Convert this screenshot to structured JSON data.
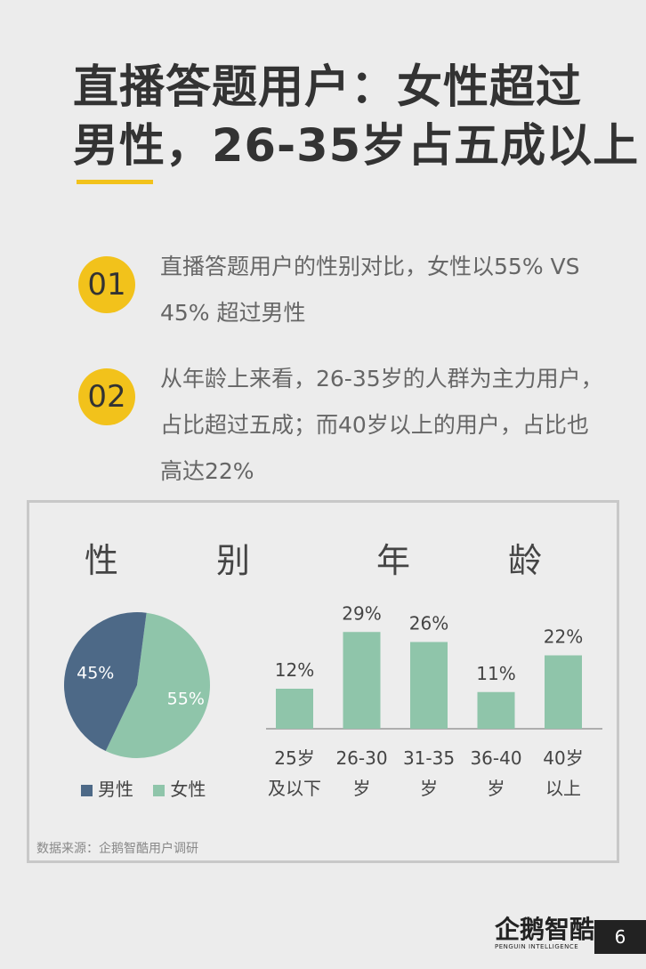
{
  "title": {
    "line1": "直播答题用户：女性超过",
    "line2": "男性，26-35岁占五成以上"
  },
  "points": [
    {
      "num": "01",
      "text": "直播答题用户的性别对比，女性以55% VS 45% 超过男性"
    },
    {
      "num": "02",
      "text": "从年龄上来看，26-35岁的人群为主力用户，占比超过五成；而40岁以上的用户，占比也高达22%"
    }
  ],
  "chart_data": [
    {
      "type": "pie",
      "title": "性　别",
      "labels": [
        "男性",
        "女性"
      ],
      "values": [
        45,
        55
      ],
      "value_labels": [
        "45%",
        "55%"
      ],
      "colors": [
        "#4d6987",
        "#8fc5aa"
      ],
      "legend": "bottom"
    },
    {
      "type": "bar",
      "title": "年　龄",
      "categories": [
        "25岁\n及以下",
        "26-30\n岁",
        "31-35\n岁",
        "36-40\n岁",
        "40岁\n以上"
      ],
      "values": [
        12,
        29,
        26,
        11,
        22
      ],
      "value_labels": [
        "12%",
        "29%",
        "26%",
        "11%",
        "22%"
      ],
      "ylim": [
        0,
        32
      ],
      "color": "#8fc5aa",
      "grid": false
    }
  ],
  "source": "数据来源：企鹅智酷用户调研",
  "footer": {
    "logo_cn": "企鹅智酷",
    "logo_en": "PENGUIN INTELLIGENCE",
    "page": "6"
  }
}
